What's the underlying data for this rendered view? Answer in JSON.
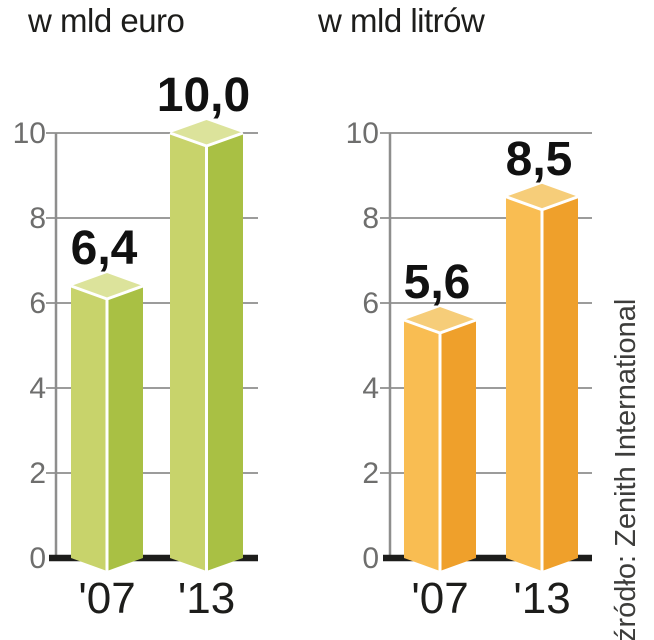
{
  "source_note": "źródło: Zenith International",
  "chart_data": [
    {
      "type": "bar",
      "title": "w mld euro",
      "categories": [
        "'07",
        "'13"
      ],
      "values": [
        6.4,
        10.0
      ],
      "value_labels": [
        "6,4",
        "10,0"
      ],
      "xlabel": "",
      "ylabel": "",
      "ylim": [
        0,
        10
      ],
      "yticks": [
        0,
        2,
        4,
        6,
        8,
        10
      ],
      "grid": true,
      "legend": "none",
      "bar_colors": {
        "top": "#dce39b",
        "left": "#c8d36b",
        "right": "#a9c044"
      }
    },
    {
      "type": "bar",
      "title": "w mld litrów",
      "categories": [
        "'07",
        "'13"
      ],
      "values": [
        5.6,
        8.5
      ],
      "value_labels": [
        "5,6",
        "8,5"
      ],
      "xlabel": "",
      "ylabel": "",
      "ylim": [
        0,
        10
      ],
      "yticks": [
        0,
        2,
        4,
        6,
        8,
        10
      ],
      "grid": true,
      "legend": "none",
      "bar_colors": {
        "top": "#f6cd79",
        "left": "#f9bd52",
        "right": "#efa02b"
      }
    }
  ]
}
